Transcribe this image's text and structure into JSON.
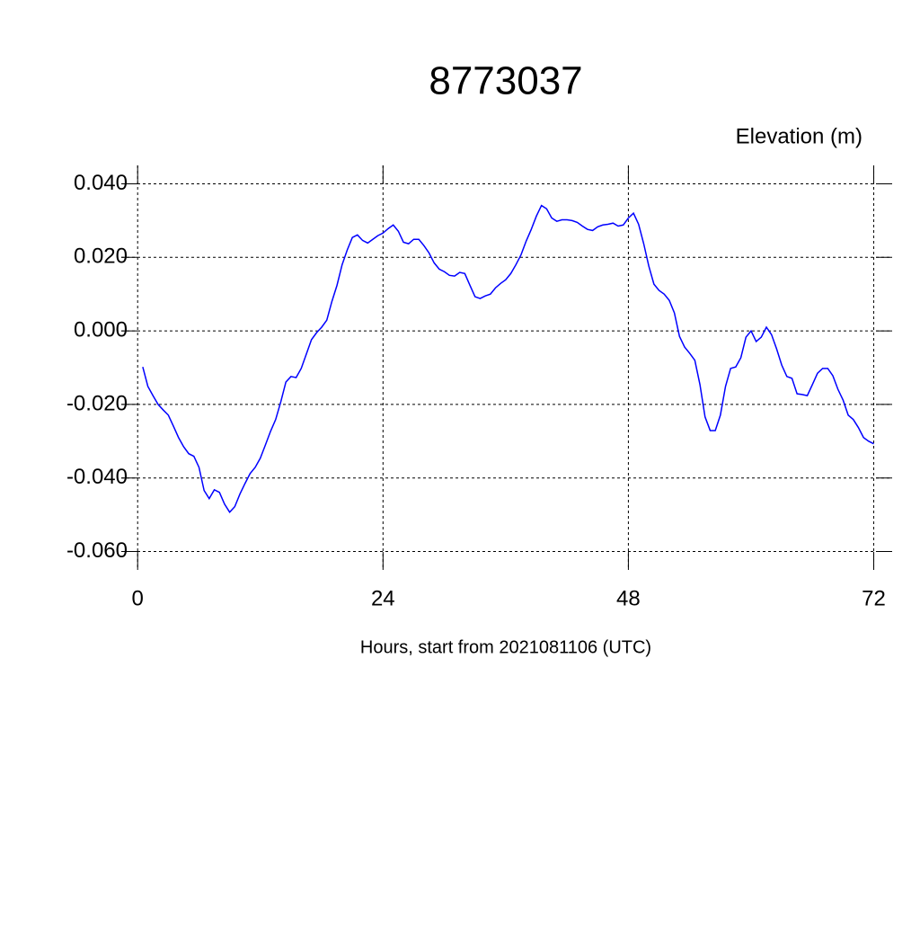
{
  "chart_data": {
    "type": "line",
    "title": "8773037",
    "subtitle": "Elevation (m)",
    "x_label": "Hours, start from 2021081106 (UTC)",
    "x": [
      0.5,
      1,
      1.5,
      2,
      2.5,
      3,
      3.5,
      4,
      4.5,
      5,
      5.5,
      6,
      6.5,
      7,
      7.5,
      8,
      8.5,
      9,
      9.5,
      10,
      10.5,
      11,
      11.5,
      12,
      12.5,
      13,
      13.5,
      14,
      14.5,
      15,
      15.5,
      16,
      16.5,
      17,
      17.5,
      18,
      18.5,
      19,
      19.5,
      20,
      20.5,
      21,
      21.5,
      22,
      22.5,
      23,
      23.5,
      24,
      24.5,
      25,
      25.5,
      26,
      26.5,
      27,
      27.5,
      28,
      28.5,
      29,
      29.5,
      30,
      30.5,
      31,
      31.5,
      32,
      32.5,
      33,
      33.5,
      34,
      34.5,
      35,
      35.5,
      36,
      36.5,
      37,
      37.5,
      38,
      38.5,
      39,
      39.5,
      40,
      40.5,
      41,
      41.5,
      42,
      42.5,
      43,
      43.5,
      44,
      44.5,
      45,
      45.5,
      46,
      46.5,
      47,
      47.5,
      48,
      48.5,
      49,
      49.5,
      50,
      50.5,
      51,
      51.5,
      52,
      52.5,
      53,
      53.5,
      54,
      54.5,
      55,
      55.5,
      56,
      56.5,
      57,
      57.5,
      58,
      58.5,
      59,
      59.5,
      60,
      60.5,
      61,
      61.5,
      62,
      62.5,
      63,
      63.5,
      64,
      64.5,
      65,
      65.5,
      66,
      66.5,
      67,
      67.5,
      68,
      68.5,
      69,
      69.5,
      70,
      70.5,
      71,
      71.5,
      72
    ],
    "series": [
      {
        "color": "#0000ff",
        "values": [
          -0.0098,
          -0.0151,
          -0.0176,
          -0.02,
          -0.0215,
          -0.0229,
          -0.0259,
          -0.029,
          -0.0315,
          -0.0334,
          -0.0341,
          -0.0371,
          -0.0434,
          -0.0456,
          -0.0432,
          -0.0439,
          -0.0471,
          -0.0493,
          -0.0478,
          -0.0444,
          -0.0415,
          -0.0388,
          -0.0371,
          -0.0346,
          -0.031,
          -0.0273,
          -0.0241,
          -0.0193,
          -0.0139,
          -0.0124,
          -0.0127,
          -0.0102,
          -0.0063,
          -0.0024,
          -0.0005,
          0.001,
          0.0029,
          0.008,
          0.0124,
          0.018,
          0.022,
          0.0254,
          0.0261,
          0.0246,
          0.0239,
          0.0249,
          0.0259,
          0.0266,
          0.0278,
          0.0288,
          0.0271,
          0.0241,
          0.0237,
          0.0249,
          0.0249,
          0.0232,
          0.0212,
          0.0185,
          0.0168,
          0.0161,
          0.0151,
          0.0149,
          0.0159,
          0.0156,
          0.0124,
          0.0093,
          0.0088,
          0.0095,
          0.01,
          0.0117,
          0.0129,
          0.0139,
          0.0156,
          0.018,
          0.0207,
          0.0244,
          0.0276,
          0.0312,
          0.0341,
          0.0332,
          0.0307,
          0.0298,
          0.0302,
          0.0302,
          0.03,
          0.0295,
          0.0285,
          0.0276,
          0.0273,
          0.0283,
          0.0288,
          0.029,
          0.0293,
          0.0285,
          0.0288,
          0.0307,
          0.032,
          0.029,
          0.0237,
          0.0176,
          0.0127,
          0.011,
          0.01,
          0.0083,
          0.0049,
          -0.0015,
          -0.0044,
          -0.0061,
          -0.008,
          -0.0146,
          -0.0234,
          -0.0271,
          -0.0271,
          -0.0229,
          -0.0151,
          -0.0102,
          -0.0098,
          -0.0073,
          -0.0017,
          0,
          -0.0029,
          -0.0017,
          0.001,
          -0.001,
          -0.0049,
          -0.0093,
          -0.0124,
          -0.0129,
          -0.0171,
          -0.0173,
          -0.0176,
          -0.0146,
          -0.0115,
          -0.0102,
          -0.0102,
          -0.0122,
          -0.0159,
          -0.0188,
          -0.0229,
          -0.0241,
          -0.0263,
          -0.029,
          -0.03,
          -0.0307
        ]
      }
    ],
    "xlim": [
      -1.6,
      73.8
    ],
    "xticks": [
      0,
      24,
      48,
      72
    ],
    "ylim": [
      -0.065,
      0.045
    ],
    "yticks": [
      {
        "value": -0.06,
        "label": "-0.060"
      },
      {
        "value": -0.04,
        "label": "-0.040"
      },
      {
        "value": -0.02,
        "label": "-0.020"
      },
      {
        "value": 0,
        "label": "0.000"
      },
      {
        "value": 0.02,
        "label": "0.020"
      },
      {
        "value": 0.04,
        "label": "0.040"
      }
    ],
    "grid": true
  }
}
